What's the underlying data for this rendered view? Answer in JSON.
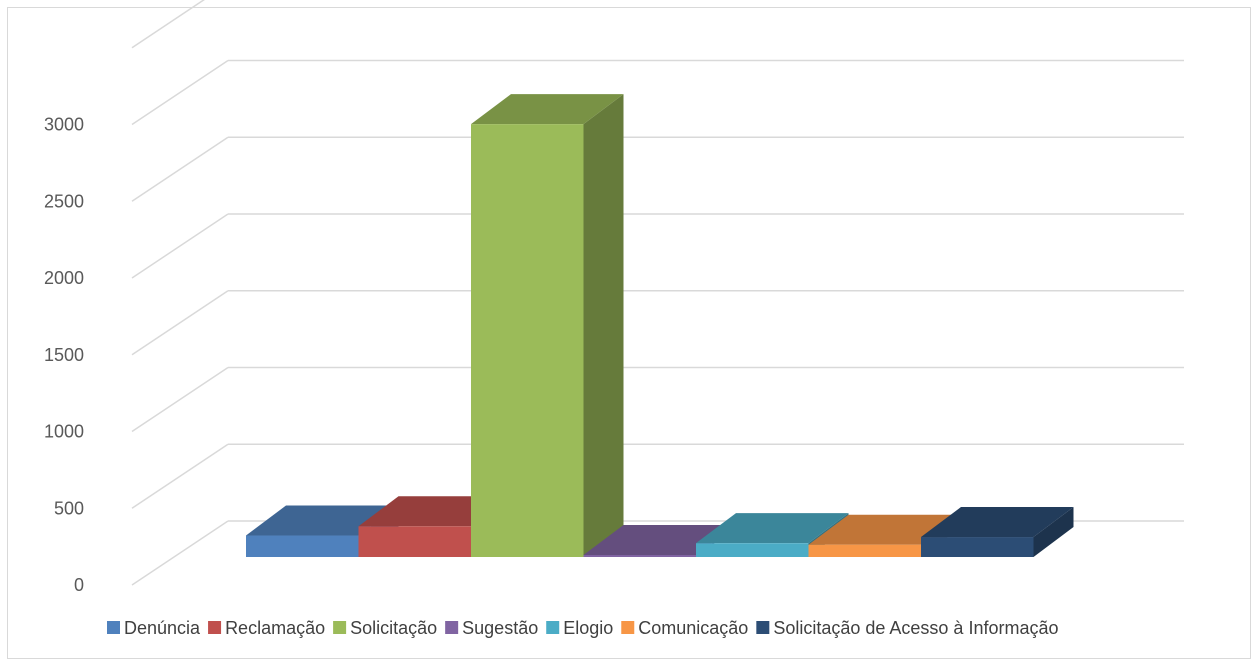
{
  "chart_data": {
    "type": "bar",
    "style": "3d-column",
    "title": "",
    "xlabel": "",
    "ylabel": "",
    "ylim": [
      0,
      3500
    ],
    "yticks": [
      0,
      500,
      1000,
      1500,
      2000,
      2500,
      3000
    ],
    "grid": true,
    "legend_position": "bottom",
    "series": [
      {
        "name": "Denúncia",
        "value": 140,
        "color": "#4F81BD"
      },
      {
        "name": "Reclamação",
        "value": 200,
        "color": "#C0504D"
      },
      {
        "name": "Solicitação",
        "value": 2820,
        "color": "#9BBB59"
      },
      {
        "name": "Sugestão",
        "value": 5,
        "color": "#8064A2"
      },
      {
        "name": "Elogio",
        "value": 90,
        "color": "#4BACC6"
      },
      {
        "name": "Comunicação",
        "value": 80,
        "color": "#F79646"
      },
      {
        "name": "Solicitação de Acesso à Informação",
        "value": 130,
        "color": "#2C4D75"
      }
    ]
  }
}
